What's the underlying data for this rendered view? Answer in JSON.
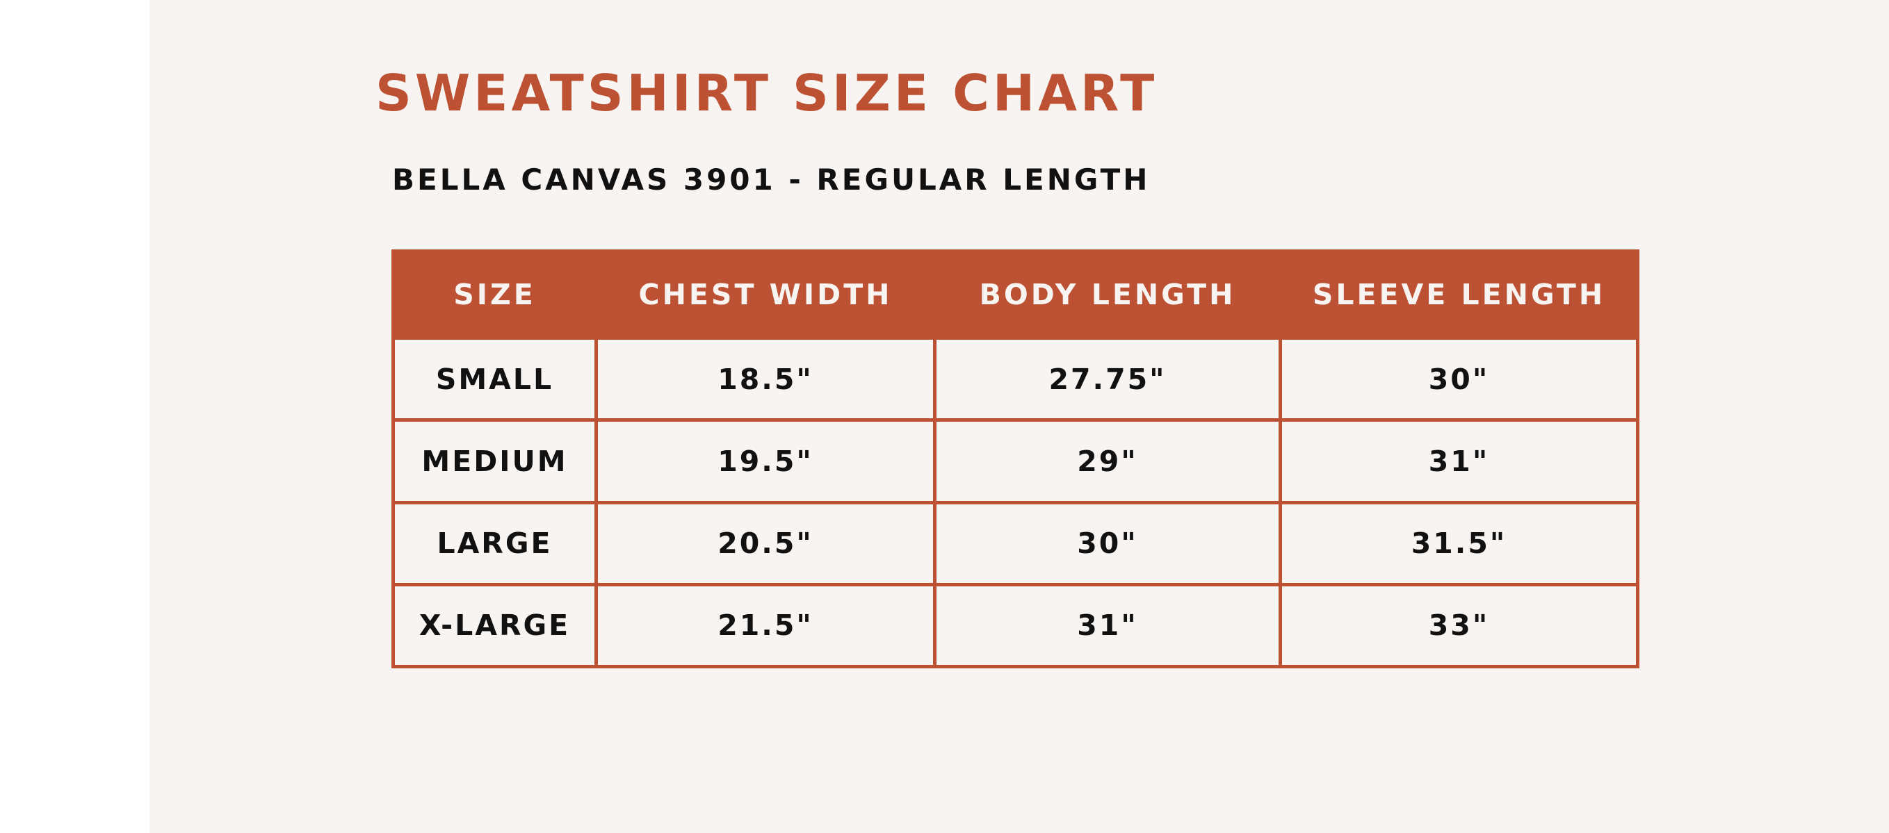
{
  "title": "SWEATSHIRT SIZE CHART",
  "subtitle": "BELLA CANVAS 3901 - REGULAR LENGTH",
  "colors": {
    "accent": "#bc5233",
    "background": "#f8f4f2",
    "text": "#111111"
  },
  "table": {
    "headers": [
      "SIZE",
      "CHEST WIDTH",
      "BODY LENGTH",
      "SLEEVE LENGTH"
    ],
    "rows": [
      [
        "SMALL",
        "18.5\"",
        "27.75\"",
        "30\""
      ],
      [
        "MEDIUM",
        "19.5\"",
        "29\"",
        "31\""
      ],
      [
        "LARGE",
        "20.5\"",
        "30\"",
        "31.5\""
      ],
      [
        "X-LARGE",
        "21.5\"",
        "31\"",
        "33\""
      ]
    ]
  }
}
